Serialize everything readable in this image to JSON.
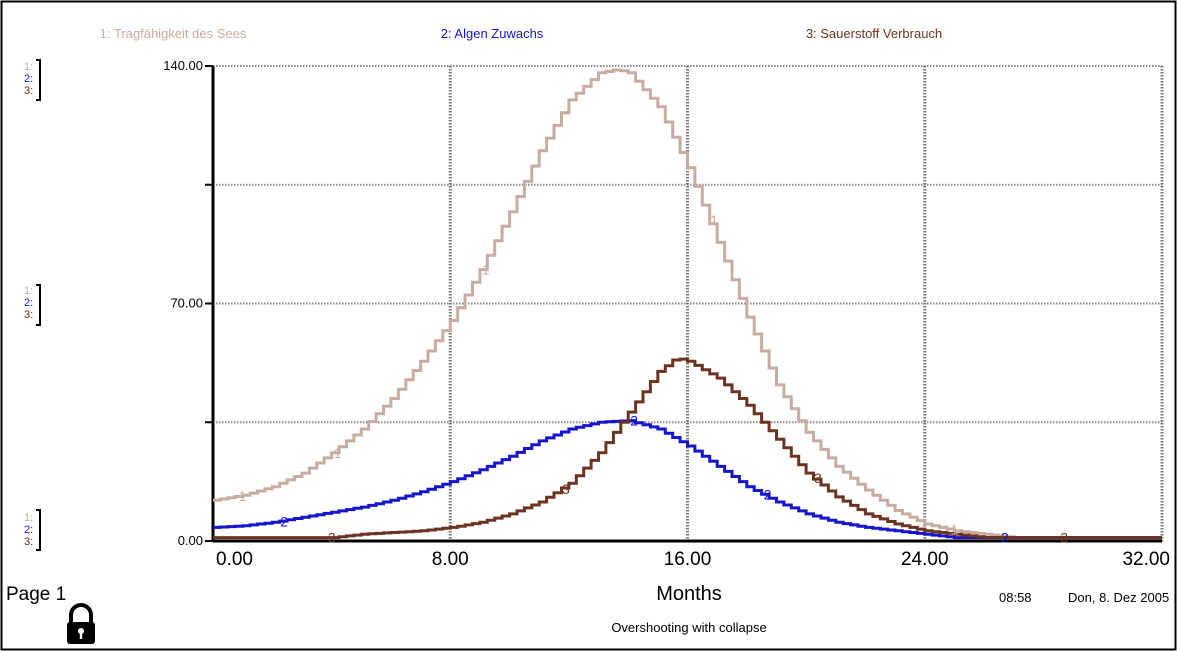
{
  "chart_data": {
    "type": "line",
    "title": "",
    "xlabel": "Months",
    "subtitle": "Overshooting with collapse",
    "xlim": [
      0,
      32
    ],
    "ylim": [
      0,
      140
    ],
    "x_ticks": [
      "0.00",
      "8.00",
      "16.00",
      "24.00",
      "32.00"
    ],
    "y_tick_labels": [
      {
        "value": 140,
        "label": "140.00"
      },
      {
        "value": 70,
        "label": "70.00"
      },
      {
        "value": 0,
        "label": "0.00"
      }
    ],
    "grid": true,
    "series": [
      {
        "name": "1: Tragfähigkeit des Sees",
        "marker": "1",
        "color": "#c9aca0",
        "points": [
          [
            0,
            12
          ],
          [
            1,
            13.5
          ],
          [
            2,
            16
          ],
          [
            3,
            20
          ],
          [
            4,
            26
          ],
          [
            5,
            33
          ],
          [
            6,
            42
          ],
          [
            7,
            53
          ],
          [
            8,
            65
          ],
          [
            9,
            80
          ],
          [
            10,
            97
          ],
          [
            11,
            115
          ],
          [
            12,
            130
          ],
          [
            13,
            138
          ],
          [
            13.6,
            139
          ],
          [
            14,
            138
          ],
          [
            15,
            128
          ],
          [
            16,
            110
          ],
          [
            17,
            88
          ],
          [
            18,
            66
          ],
          [
            19,
            46
          ],
          [
            20,
            32
          ],
          [
            21,
            22
          ],
          [
            22,
            15
          ],
          [
            23,
            9
          ],
          [
            24,
            5
          ],
          [
            25,
            3
          ],
          [
            26,
            2
          ],
          [
            27,
            1
          ],
          [
            28,
            1
          ],
          [
            32,
            1
          ]
        ]
      },
      {
        "name": "2: Algen Zuwachs",
        "marker": "2",
        "color": "#1515cc",
        "points": [
          [
            0,
            4
          ],
          [
            1,
            4.5
          ],
          [
            2,
            5.5
          ],
          [
            3,
            7
          ],
          [
            4,
            8.5
          ],
          [
            5,
            10
          ],
          [
            6,
            12
          ],
          [
            7,
            14.5
          ],
          [
            8,
            17.5
          ],
          [
            9,
            21
          ],
          [
            10,
            25
          ],
          [
            11,
            29.5
          ],
          [
            12,
            33
          ],
          [
            13,
            35
          ],
          [
            14,
            35.5
          ],
          [
            15,
            33
          ],
          [
            16,
            28
          ],
          [
            17,
            22
          ],
          [
            18,
            16
          ],
          [
            19,
            11.5
          ],
          [
            20,
            8
          ],
          [
            21,
            5.5
          ],
          [
            22,
            4
          ],
          [
            23,
            3
          ],
          [
            24,
            2
          ],
          [
            25,
            1
          ],
          [
            26,
            1
          ],
          [
            27,
            1
          ],
          [
            32,
            1
          ]
        ]
      },
      {
        "name": "3: Sauerstoff Verbrauch",
        "marker": "3",
        "color": "#6b3420",
        "points": [
          [
            0,
            1
          ],
          [
            2,
            1
          ],
          [
            4,
            1
          ],
          [
            5,
            2
          ],
          [
            6,
            2.5
          ],
          [
            7,
            3
          ],
          [
            8,
            4
          ],
          [
            9,
            5.5
          ],
          [
            10,
            8
          ],
          [
            11,
            11.5
          ],
          [
            12,
            17
          ],
          [
            13,
            26
          ],
          [
            14,
            38
          ],
          [
            15,
            50
          ],
          [
            15.6,
            54
          ],
          [
            16,
            53
          ],
          [
            17,
            48
          ],
          [
            18,
            40
          ],
          [
            19,
            30
          ],
          [
            20,
            20
          ],
          [
            21,
            13
          ],
          [
            22,
            8
          ],
          [
            23,
            5
          ],
          [
            24,
            3
          ],
          [
            25,
            2
          ],
          [
            26,
            1
          ],
          [
            28,
            1
          ],
          [
            32,
            1
          ]
        ]
      }
    ],
    "label_positions": {
      "1": [
        0.8,
        4.0,
        9.0,
        16.7,
        24.8
      ],
      "2": [
        2.2,
        14.0,
        18.5,
        26.5
      ],
      "3": [
        3.8,
        11.7,
        20.2,
        28.5
      ]
    },
    "legend_placement": "top"
  },
  "left_scale_markers": [
    "1:",
    "2:",
    "3:"
  ],
  "footer": {
    "page_label": "Page 1",
    "time": "08:58",
    "date": "Don, 8. Dez 2005"
  }
}
